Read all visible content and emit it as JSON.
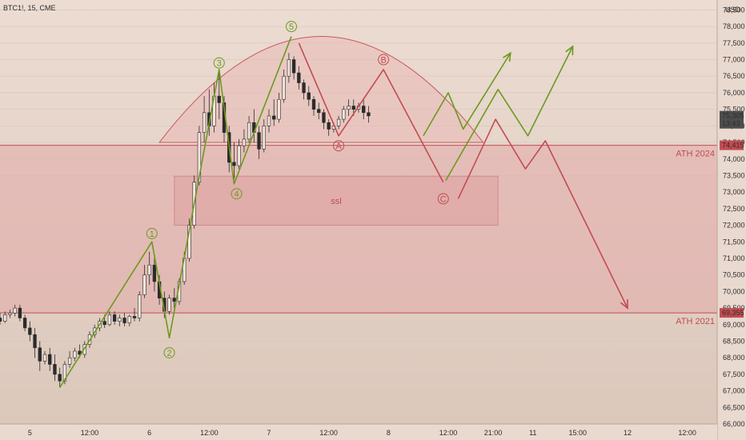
{
  "header": {
    "symbol": "BTC1!, 15, CME",
    "currency": "USD"
  },
  "chart_data": {
    "type": "candlestick",
    "y_axis": {
      "min": 66000,
      "max": 78800,
      "ticks": [
        66000,
        66500,
        67000,
        67500,
        68000,
        68500,
        69000,
        69500,
        70000,
        70500,
        71000,
        71500,
        72000,
        72500,
        73000,
        73500,
        74000,
        74500,
        75000,
        75500,
        76000,
        76500,
        77000,
        77500,
        78000,
        78500
      ],
      "tick_labels": [
        "66,000",
        "66,500",
        "67,000",
        "67,500",
        "68,000",
        "68,500",
        "69,000",
        "69,500",
        "70,000",
        "70,500",
        "71,000",
        "71,500",
        "72,000",
        "72,500",
        "73,000",
        "73,500",
        "74,000",
        "74,500",
        "75,000",
        "75,500",
        "76,000",
        "76,500",
        "77,000",
        "77,500",
        "78,000",
        "78,500"
      ]
    },
    "x_axis": {
      "min": 0,
      "max": 144,
      "ticks": [
        {
          "x": 6,
          "label": "5"
        },
        {
          "x": 18,
          "label": "12:00"
        },
        {
          "x": 30,
          "label": "6"
        },
        {
          "x": 42,
          "label": "12:00"
        },
        {
          "x": 54,
          "label": "7"
        },
        {
          "x": 66,
          "label": "12:00"
        },
        {
          "x": 78,
          "label": "8"
        },
        {
          "x": 90,
          "label": "12:00"
        },
        {
          "x": 99,
          "label": "21:00"
        },
        {
          "x": 107,
          "label": "11"
        },
        {
          "x": 116,
          "label": "15:00"
        },
        {
          "x": 126,
          "label": "12"
        },
        {
          "x": 138,
          "label": "12:00"
        }
      ]
    },
    "price_markers": [
      {
        "value": 75305,
        "label": "75,305",
        "sublabel": "13:43",
        "color": "#4d4d4d"
      },
      {
        "value": 74415,
        "label": "74,415",
        "color": "#c24c52"
      },
      {
        "value": 69355,
        "label": "69,355",
        "color": "#c24c52"
      }
    ],
    "levels": [
      {
        "value": 74415,
        "label": "ATH 2024",
        "color": "#c24c52"
      },
      {
        "value": 69355,
        "label": "ATH 2021",
        "color": "#c24c52"
      }
    ],
    "zones": [
      {
        "x0": 0,
        "x1": 144,
        "y0": 69355,
        "y1": 74415,
        "color": "#e4a9a9"
      },
      {
        "x0": 35,
        "x1": 100,
        "y0": 72000,
        "y1": 73480,
        "color": "#dca0a0",
        "label": "ssl"
      }
    ],
    "arc": {
      "x0": 32,
      "x1": 97,
      "peak_y": 77700,
      "base_y": 74500,
      "color": "#c9595c"
    },
    "impulse_wave": {
      "color": "#6b9a1e",
      "points": [
        [
          12,
          67100
        ],
        [
          30.5,
          71500
        ],
        [
          34,
          68600
        ],
        [
          44,
          76700
        ],
        [
          47,
          73250
        ],
        [
          58.5,
          77700
        ]
      ],
      "labels": [
        {
          "text": "1",
          "x": 30.5,
          "y": 71750
        },
        {
          "text": "2",
          "x": 34,
          "y": 68150
        },
        {
          "text": "3",
          "x": 44,
          "y": 76900
        },
        {
          "text": "4",
          "x": 47.5,
          "y": 72950
        },
        {
          "text": "5",
          "x": 58.5,
          "y": 78000
        }
      ]
    },
    "correction_wave": {
      "color": "#c24c52",
      "points": [
        [
          60,
          77500
        ],
        [
          68,
          74700
        ],
        [
          77,
          76700
        ],
        [
          89,
          73300
        ]
      ],
      "labels": [
        {
          "text": "A",
          "x": 68,
          "y": 74400
        },
        {
          "text": "B",
          "x": 77,
          "y": 77000
        },
        {
          "text": "C",
          "x": 89,
          "y": 72800
        }
      ]
    },
    "projections": [
      {
        "color": "#6b9a1e",
        "points": [
          [
            85,
            74700
          ],
          [
            90,
            76000
          ],
          [
            93,
            74900
          ],
          [
            102.5,
            77200
          ]
        ]
      },
      {
        "color": "#6b9a1e",
        "points": [
          [
            89.5,
            73350
          ],
          [
            100,
            76100
          ],
          [
            106,
            74700
          ],
          [
            115,
            77400
          ]
        ]
      },
      {
        "color": "#c24c52",
        "points": [
          [
            92,
            72800
          ],
          [
            99.5,
            75200
          ],
          [
            105.5,
            73700
          ],
          [
            109.5,
            74550
          ],
          [
            126,
            69500
          ]
        ]
      }
    ],
    "candles": [
      {
        "t": 0,
        "o": 69200,
        "h": 69350,
        "c": 69100,
        "l": 69000
      },
      {
        "t": 1,
        "o": 69100,
        "h": 69400,
        "c": 69300,
        "l": 69050
      },
      {
        "t": 2,
        "o": 69300,
        "h": 69450,
        "c": 69350,
        "l": 69200
      },
      {
        "t": 3,
        "o": 69350,
        "h": 69600,
        "c": 69500,
        "l": 69250
      },
      {
        "t": 4,
        "o": 69500,
        "h": 69600,
        "c": 69200,
        "l": 69100
      },
      {
        "t": 5,
        "o": 69200,
        "h": 69300,
        "c": 68900,
        "l": 68800
      },
      {
        "t": 6,
        "o": 68900,
        "h": 69100,
        "c": 68700,
        "l": 68500
      },
      {
        "t": 7,
        "o": 68700,
        "h": 68900,
        "c": 68300,
        "l": 68000
      },
      {
        "t": 8,
        "o": 68300,
        "h": 68500,
        "c": 67900,
        "l": 67600
      },
      {
        "t": 9,
        "o": 67900,
        "h": 68200,
        "c": 68100,
        "l": 67800
      },
      {
        "t": 10,
        "o": 68100,
        "h": 68300,
        "c": 67800,
        "l": 67600
      },
      {
        "t": 11,
        "o": 67800,
        "h": 68100,
        "c": 67500,
        "l": 67300
      },
      {
        "t": 12,
        "o": 67500,
        "h": 67700,
        "c": 67300,
        "l": 67100
      },
      {
        "t": 13,
        "o": 67300,
        "h": 67900,
        "c": 67800,
        "l": 67200
      },
      {
        "t": 14,
        "o": 67800,
        "h": 68200,
        "c": 68000,
        "l": 67700
      },
      {
        "t": 15,
        "o": 68000,
        "h": 68300,
        "c": 68200,
        "l": 67900
      },
      {
        "t": 16,
        "o": 68200,
        "h": 68400,
        "c": 68100,
        "l": 68000
      },
      {
        "t": 17,
        "o": 68100,
        "h": 68500,
        "c": 68400,
        "l": 68000
      },
      {
        "t": 18,
        "o": 68400,
        "h": 68800,
        "c": 68700,
        "l": 68300
      },
      {
        "t": 19,
        "o": 68700,
        "h": 69000,
        "c": 68900,
        "l": 68600
      },
      {
        "t": 20,
        "o": 68900,
        "h": 69200,
        "c": 69100,
        "l": 68800
      },
      {
        "t": 21,
        "o": 69100,
        "h": 69300,
        "c": 69000,
        "l": 68900
      },
      {
        "t": 22,
        "o": 69000,
        "h": 69400,
        "c": 69300,
        "l": 68950
      },
      {
        "t": 23,
        "o": 69300,
        "h": 69400,
        "c": 69100,
        "l": 69000
      },
      {
        "t": 24,
        "o": 69100,
        "h": 69300,
        "c": 69200,
        "l": 68950
      },
      {
        "t": 25,
        "o": 69200,
        "h": 69350,
        "c": 69050,
        "l": 68950
      },
      {
        "t": 26,
        "o": 69050,
        "h": 69300,
        "c": 69250,
        "l": 68950
      },
      {
        "t": 27,
        "o": 69250,
        "h": 69500,
        "c": 69200,
        "l": 69100
      },
      {
        "t": 28,
        "o": 69200,
        "h": 70000,
        "c": 69900,
        "l": 69100
      },
      {
        "t": 29,
        "o": 69900,
        "h": 70800,
        "c": 70500,
        "l": 69800
      },
      {
        "t": 30,
        "o": 70500,
        "h": 71200,
        "c": 70800,
        "l": 70200
      },
      {
        "t": 31,
        "o": 70800,
        "h": 71000,
        "c": 70300,
        "l": 70000
      },
      {
        "t": 32,
        "o": 70300,
        "h": 70500,
        "c": 69800,
        "l": 69600
      },
      {
        "t": 33,
        "o": 69800,
        "h": 70000,
        "c": 69400,
        "l": 69200
      },
      {
        "t": 34,
        "o": 69400,
        "h": 69900,
        "c": 69800,
        "l": 69300
      },
      {
        "t": 35,
        "o": 69800,
        "h": 70100,
        "c": 69700,
        "l": 69500
      },
      {
        "t": 36,
        "o": 69700,
        "h": 70400,
        "c": 70300,
        "l": 69600
      },
      {
        "t": 37,
        "o": 70300,
        "h": 71200,
        "c": 71000,
        "l": 70200
      },
      {
        "t": 38,
        "o": 71000,
        "h": 72200,
        "c": 72000,
        "l": 70900
      },
      {
        "t": 39,
        "o": 72000,
        "h": 73500,
        "c": 73300,
        "l": 71900
      },
      {
        "t": 40,
        "o": 73300,
        "h": 75000,
        "c": 74800,
        "l": 73200
      },
      {
        "t": 41,
        "o": 74800,
        "h": 75900,
        "c": 75400,
        "l": 74500
      },
      {
        "t": 42,
        "o": 75400,
        "h": 76100,
        "c": 75000,
        "l": 74700
      },
      {
        "t": 43,
        "o": 75000,
        "h": 76300,
        "c": 75900,
        "l": 74800
      },
      {
        "t": 44,
        "o": 75900,
        "h": 76600,
        "c": 75700,
        "l": 75200
      },
      {
        "t": 45,
        "o": 75700,
        "h": 75900,
        "c": 74800,
        "l": 74500
      },
      {
        "t": 46,
        "o": 74800,
        "h": 75000,
        "c": 73900,
        "l": 73600
      },
      {
        "t": 47,
        "o": 73900,
        "h": 74500,
        "c": 73800,
        "l": 73400
      },
      {
        "t": 48,
        "o": 73800,
        "h": 74600,
        "c": 74400,
        "l": 73700
      },
      {
        "t": 49,
        "o": 74400,
        "h": 74900,
        "c": 74600,
        "l": 74200
      },
      {
        "t": 50,
        "o": 74600,
        "h": 75300,
        "c": 75100,
        "l": 74500
      },
      {
        "t": 51,
        "o": 75100,
        "h": 75500,
        "c": 74800,
        "l": 74500
      },
      {
        "t": 52,
        "o": 74800,
        "h": 75000,
        "c": 74300,
        "l": 74000
      },
      {
        "t": 53,
        "o": 74300,
        "h": 75200,
        "c": 75000,
        "l": 74200
      },
      {
        "t": 54,
        "o": 75000,
        "h": 75500,
        "c": 75300,
        "l": 74800
      },
      {
        "t": 55,
        "o": 75300,
        "h": 75800,
        "c": 75200,
        "l": 75000
      },
      {
        "t": 56,
        "o": 75200,
        "h": 76000,
        "c": 75800,
        "l": 75100
      },
      {
        "t": 57,
        "o": 75800,
        "h": 76700,
        "c": 76500,
        "l": 75700
      },
      {
        "t": 58,
        "o": 76500,
        "h": 77200,
        "c": 77000,
        "l": 76300
      },
      {
        "t": 59,
        "o": 77000,
        "h": 77100,
        "c": 76600,
        "l": 76400
      },
      {
        "t": 60,
        "o": 76600,
        "h": 76800,
        "c": 76300,
        "l": 76100
      },
      {
        "t": 61,
        "o": 76300,
        "h": 76400,
        "c": 76000,
        "l": 75800
      },
      {
        "t": 62,
        "o": 76000,
        "h": 76200,
        "c": 75800,
        "l": 75600
      },
      {
        "t": 63,
        "o": 75800,
        "h": 75900,
        "c": 75500,
        "l": 75300
      },
      {
        "t": 64,
        "o": 75500,
        "h": 75700,
        "c": 75400,
        "l": 75200
      },
      {
        "t": 65,
        "o": 75400,
        "h": 75500,
        "c": 75100,
        "l": 74900
      },
      {
        "t": 66,
        "o": 75100,
        "h": 75200,
        "c": 74900,
        "l": 74700
      },
      {
        "t": 67,
        "o": 74900,
        "h": 75100,
        "c": 75000,
        "l": 74800
      },
      {
        "t": 68,
        "o": 75000,
        "h": 75300,
        "c": 75200,
        "l": 74900
      },
      {
        "t": 69,
        "o": 75200,
        "h": 75600,
        "c": 75500,
        "l": 75100
      },
      {
        "t": 70,
        "o": 75500,
        "h": 75800,
        "c": 75600,
        "l": 75300
      },
      {
        "t": 71,
        "o": 75600,
        "h": 75800,
        "c": 75500,
        "l": 75300
      },
      {
        "t": 72,
        "o": 75500,
        "h": 75700,
        "c": 75600,
        "l": 75400
      },
      {
        "t": 73,
        "o": 75600,
        "h": 75800,
        "c": 75400,
        "l": 75200
      },
      {
        "t": 74,
        "o": 75400,
        "h": 75600,
        "c": 75300,
        "l": 75100
      }
    ]
  }
}
